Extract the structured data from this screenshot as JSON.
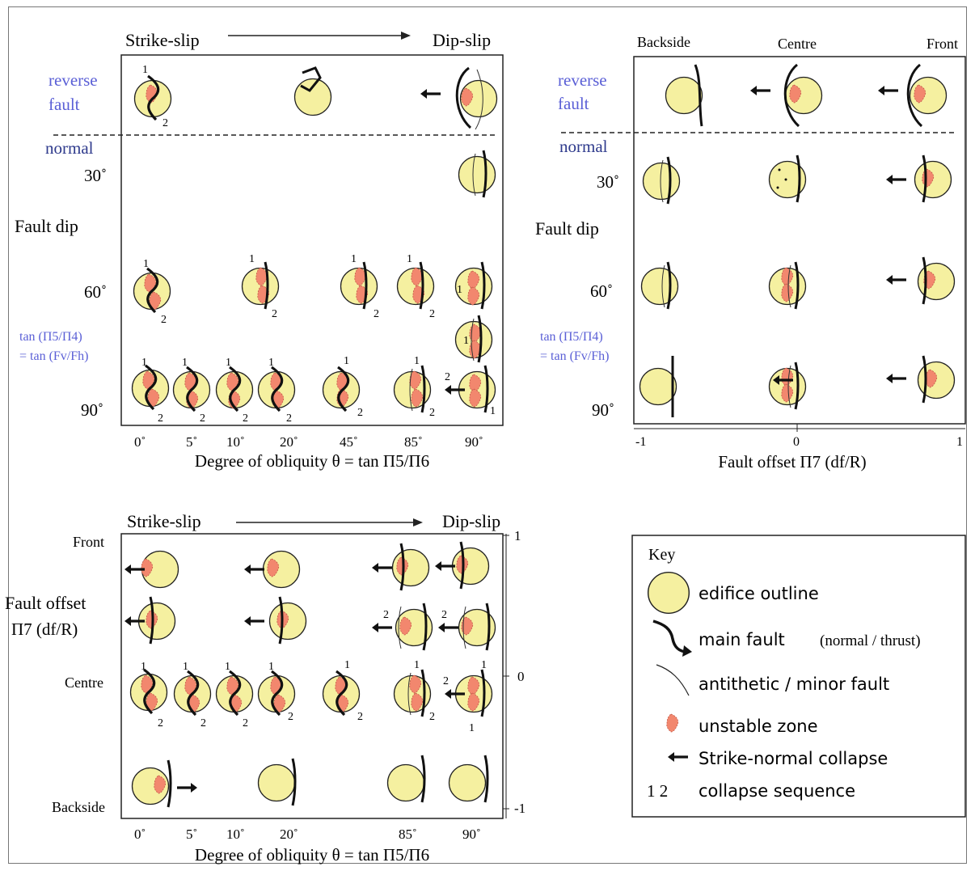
{
  "panel_a": {
    "header_left": "Strike-slip",
    "header_right": "Dip-slip",
    "reverse_line1": "reverse",
    "reverse_line2": "fault",
    "normal": "normal",
    "dip_30": "30˚",
    "fault_dip": "Fault dip",
    "dip_60": "60˚",
    "tan_line1": "tan (Π5/Π4)",
    "tan_line2": "= tan (Fv/Fh)",
    "dip_90": "90˚",
    "x_ticks": [
      "0˚",
      "5˚",
      "10˚",
      "20˚",
      "45˚",
      "85˚",
      "90˚"
    ],
    "x_label": "Degree of obliquity θ = tan Π5/Π6"
  },
  "panel_b": {
    "backside": "Backside",
    "centre": "Centre",
    "front": "Front",
    "reverse_line1": "reverse",
    "reverse_line2": "fault",
    "normal": "normal",
    "dip_30": "30˚",
    "fault_dip": "Fault dip",
    "dip_60": "60˚",
    "tan_line1": "tan (Π5/Π4)",
    "tan_line2": "= tan (Fv/Fh)",
    "dip_90": "90˚",
    "x_ticks": [
      "-1",
      "0",
      "1"
    ],
    "x_label": "Fault offset    Π7 (df/R)"
  },
  "panel_c": {
    "header_left": "Strike-slip",
    "header_right": "Dip-slip",
    "front": "Front",
    "fault_offset": "Fault offset",
    "pi7": "Π7 (df/R)",
    "centre": "Centre",
    "backside": "Backside",
    "right_ticks": [
      "1",
      "0",
      "-1"
    ],
    "x_ticks": [
      "0˚",
      "5˚",
      "10˚",
      "20˚",
      "85˚",
      "90˚"
    ],
    "x_label": "Degree of obliquity θ = tan Π5/Π6"
  },
  "key": {
    "title": "Key",
    "edifice": "edifice outline",
    "main_fault_a": "main fault",
    "main_fault_b": "(normal / thrust)",
    "antithetic": "antithetic / minor fault",
    "unstable": "unstable zone",
    "collapse": "Strike-normal collapse",
    "seq_num": "1 2",
    "sequence": "collapse sequence"
  },
  "colors": {
    "edifice_fill": "#f5f0a0",
    "unstable_fill": "#f2876e",
    "label_blue": "#5a5fd6"
  }
}
